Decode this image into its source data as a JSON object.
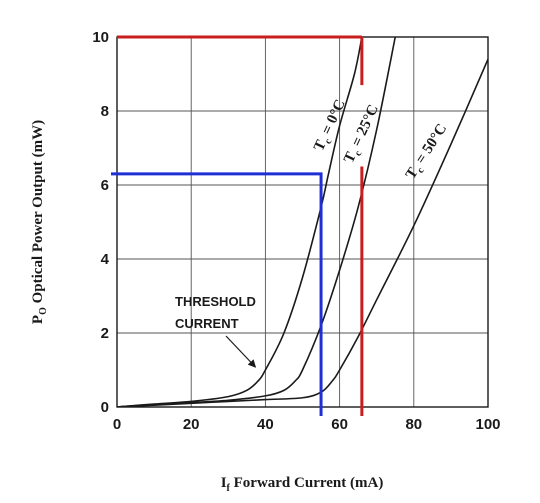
{
  "chart_data": {
    "type": "line",
    "xlabel": "I",
    "xlabel_sub": "f",
    "xlabel_rest": " Forward Current  (mA)",
    "ylabel": "P",
    "ylabel_sub": "O",
    "ylabel_rest": " Optical Power  Output (mW)",
    "xlim": [
      0,
      100
    ],
    "ylim": [
      0,
      10
    ],
    "xticks": [
      0,
      20,
      40,
      60,
      80,
      100
    ],
    "yticks": [
      0,
      2,
      4,
      6,
      8,
      10
    ],
    "grid": true,
    "series": [
      {
        "name": "Tc = 0°C",
        "label_T": "T",
        "label_sub": "c",
        "label_rest": " = 0°C",
        "color": "#1a1a1a",
        "points": [
          [
            0,
            0
          ],
          [
            10,
            0.08
          ],
          [
            20,
            0.15
          ],
          [
            30,
            0.28
          ],
          [
            35,
            0.45
          ],
          [
            38,
            0.7
          ],
          [
            40,
            1.0
          ],
          [
            45,
            2.0
          ],
          [
            50,
            3.5
          ],
          [
            55,
            5.4
          ],
          [
            57,
            6.3
          ],
          [
            60,
            7.6
          ],
          [
            64,
            9.0
          ],
          [
            66,
            10
          ]
        ]
      },
      {
        "name": "Tc = 25°C",
        "label_T": "T",
        "label_sub": "c",
        "label_rest": " = 25°C",
        "color": "#1a1a1a",
        "points": [
          [
            0,
            0
          ],
          [
            10,
            0.07
          ],
          [
            20,
            0.12
          ],
          [
            30,
            0.18
          ],
          [
            40,
            0.3
          ],
          [
            45,
            0.45
          ],
          [
            48,
            0.7
          ],
          [
            50,
            1.0
          ],
          [
            55,
            2.2
          ],
          [
            60,
            3.7
          ],
          [
            65,
            5.4
          ],
          [
            70,
            7.5
          ],
          [
            75,
            10
          ]
        ]
      },
      {
        "name": "Tc = 50°C",
        "label_T": "T",
        "label_sub": "c",
        "label_rest": " = 50°C",
        "color": "#1a1a1a",
        "points": [
          [
            0,
            0
          ],
          [
            10,
            0.05
          ],
          [
            20,
            0.1
          ],
          [
            30,
            0.15
          ],
          [
            40,
            0.2
          ],
          [
            50,
            0.25
          ],
          [
            55,
            0.4
          ],
          [
            58,
            0.7
          ],
          [
            60,
            1.0
          ],
          [
            65,
            1.9
          ],
          [
            70,
            2.9
          ],
          [
            80,
            4.9
          ],
          [
            90,
            7.1
          ],
          [
            100,
            9.4
          ]
        ]
      }
    ],
    "reference_lines": [
      {
        "name": "blue-reference",
        "color": "#1f2fd6",
        "x": 55,
        "y": 6.3
      },
      {
        "name": "red-reference",
        "color": "#c81e1e",
        "x": 66,
        "y": 10
      }
    ],
    "annotation": {
      "line1": "THRESHOLD",
      "line2": "CURRENT",
      "target": [
        40,
        1.0
      ]
    }
  }
}
